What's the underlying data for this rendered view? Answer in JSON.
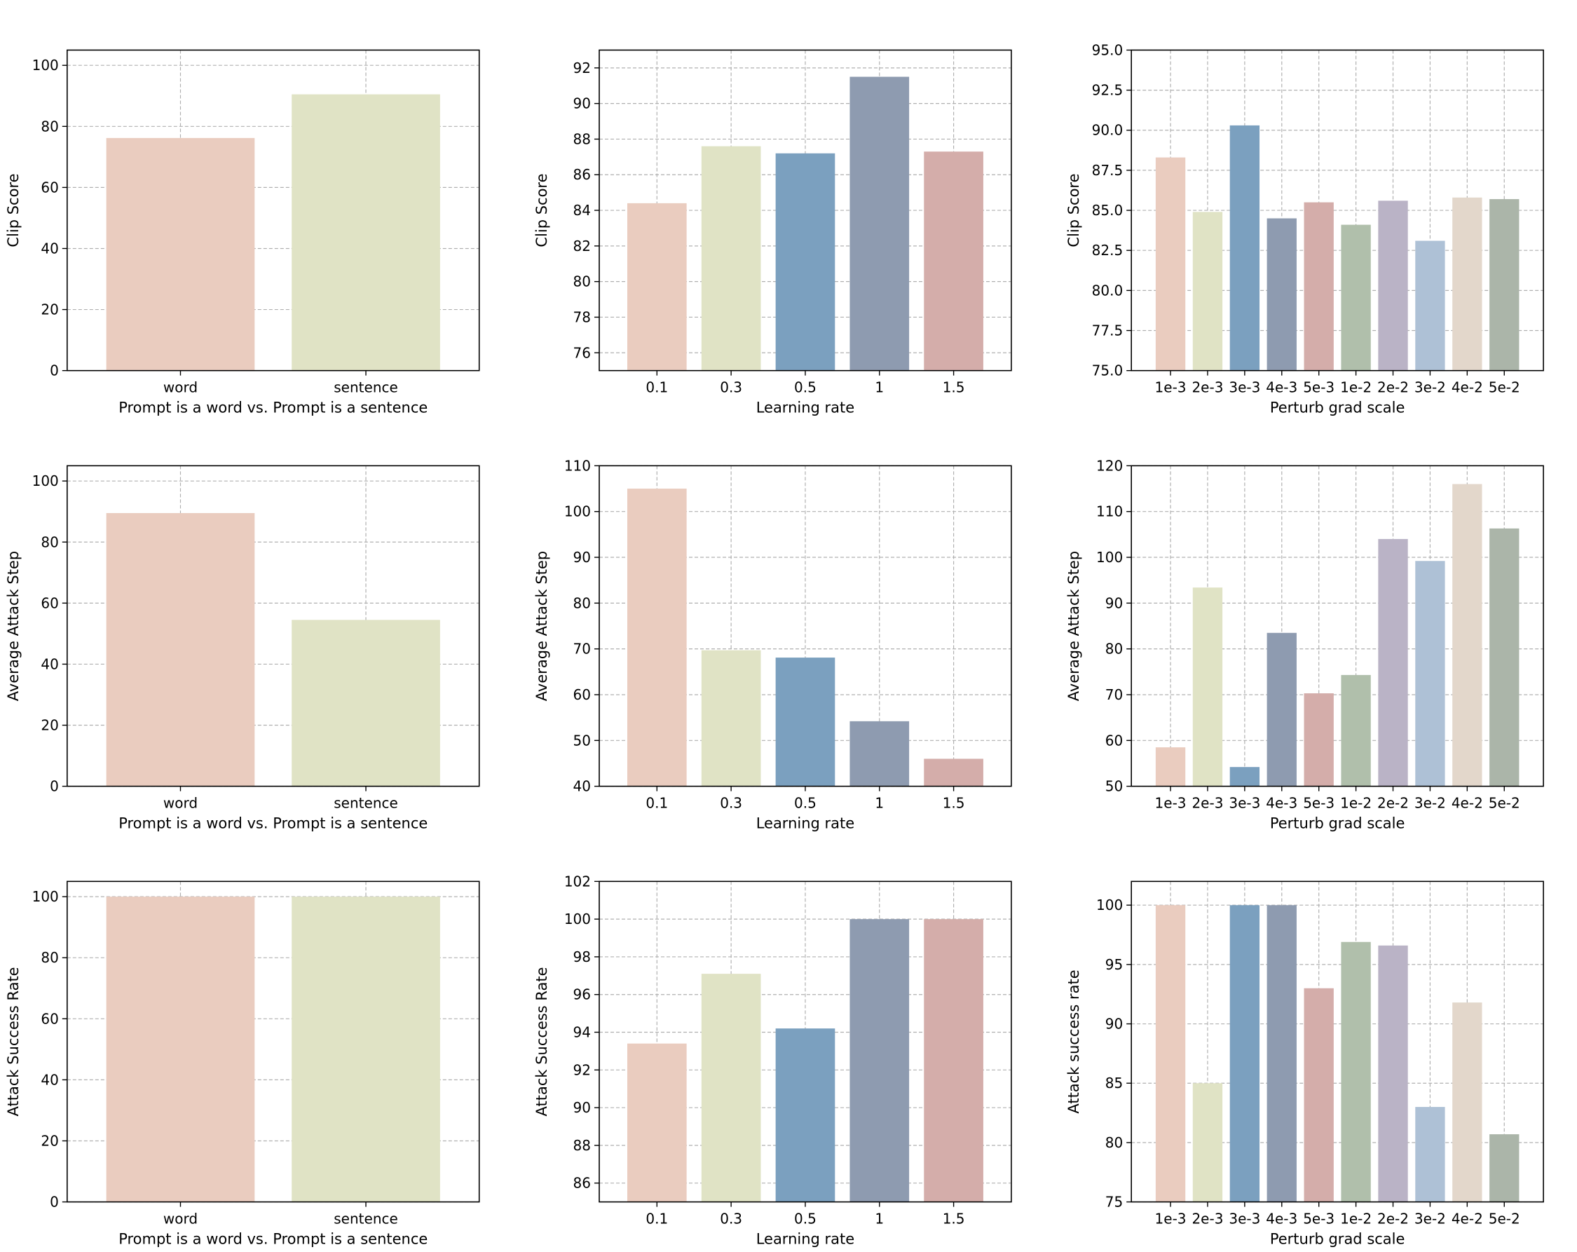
{
  "palette": [
    "#EACCBF",
    "#E0E3C5",
    "#7BA0BF",
    "#8E9BB0",
    "#D4ADAA",
    "#B0BFAB",
    "#BAB3C6",
    "#AEC1D6",
    "#E3D7CB",
    "#ABB5A9"
  ],
  "chart_data": [
    {
      "type": "bar",
      "xlabel": "Prompt is a word vs. Prompt is a sentence",
      "ylabel": "Clip Score",
      "categories": [
        "word",
        "sentence"
      ],
      "values": [
        76.2,
        90.5
      ],
      "ylim": [
        0,
        105
      ],
      "yticks": [
        0,
        20,
        40,
        60,
        80,
        100
      ],
      "ytick_labels": [
        "0",
        "20",
        "40",
        "60",
        "80",
        "100"
      ],
      "grid": true
    },
    {
      "type": "bar",
      "xlabel": "Learning rate",
      "ylabel": "Clip Score",
      "categories": [
        "0.1",
        "0.3",
        "0.5",
        "1",
        "1.5"
      ],
      "values": [
        84.4,
        87.6,
        87.2,
        91.5,
        87.3
      ],
      "ylim": [
        75,
        93
      ],
      "yticks": [
        76,
        78,
        80,
        82,
        84,
        86,
        88,
        90,
        92
      ],
      "ytick_labels": [
        "76",
        "78",
        "80",
        "82",
        "84",
        "86",
        "88",
        "90",
        "92"
      ],
      "grid": true
    },
    {
      "type": "bar",
      "xlabel": "Perturb grad scale",
      "ylabel": "Clip Score",
      "categories": [
        "1e-3",
        "2e-3",
        "3e-3",
        "4e-3",
        "5e-3",
        "1e-2",
        "2e-2",
        "3e-2",
        "4e-2",
        "5e-2"
      ],
      "values": [
        88.3,
        84.9,
        90.3,
        84.5,
        85.5,
        84.1,
        85.6,
        83.1,
        85.8,
        85.7
      ],
      "ylim": [
        75,
        95
      ],
      "yticks": [
        75,
        77.5,
        80,
        82.5,
        85,
        87.5,
        90,
        92.5,
        95
      ],
      "ytick_labels": [
        "75.0",
        "77.5",
        "80.0",
        "82.5",
        "85.0",
        "87.5",
        "90.0",
        "92.5",
        "95.0"
      ],
      "grid": true
    },
    {
      "type": "bar",
      "xlabel": "Prompt is a word vs. Prompt is a sentence",
      "ylabel": "Average Attack Step",
      "categories": [
        "word",
        "sentence"
      ],
      "values": [
        89.5,
        54.5
      ],
      "ylim": [
        0,
        105
      ],
      "yticks": [
        0,
        20,
        40,
        60,
        80,
        100
      ],
      "ytick_labels": [
        "0",
        "20",
        "40",
        "60",
        "80",
        "100"
      ],
      "grid": true
    },
    {
      "type": "bar",
      "xlabel": "Learning rate",
      "ylabel": "Average Attack Step",
      "categories": [
        "0.1",
        "0.3",
        "0.5",
        "1",
        "1.5"
      ],
      "values": [
        105,
        69.7,
        68.1,
        54.2,
        46
      ],
      "ylim": [
        40,
        110
      ],
      "yticks": [
        40,
        50,
        60,
        70,
        80,
        90,
        100,
        110
      ],
      "ytick_labels": [
        "40",
        "50",
        "60",
        "70",
        "80",
        "90",
        "100",
        "110"
      ],
      "grid": true
    },
    {
      "type": "bar",
      "xlabel": "Perturb grad scale",
      "ylabel": "Average Attack Step",
      "categories": [
        "1e-3",
        "2e-3",
        "3e-3",
        "4e-3",
        "5e-3",
        "1e-2",
        "2e-2",
        "3e-2",
        "4e-2",
        "5e-2"
      ],
      "values": [
        58.5,
        93.4,
        54.2,
        83.5,
        70.3,
        74.3,
        104,
        99.2,
        116,
        106.3
      ],
      "ylim": [
        50,
        120
      ],
      "yticks": [
        50,
        60,
        70,
        80,
        90,
        100,
        110,
        120
      ],
      "ytick_labels": [
        "50",
        "60",
        "70",
        "80",
        "90",
        "100",
        "110",
        "120"
      ],
      "grid": true
    },
    {
      "type": "bar",
      "xlabel": "Prompt is a word vs. Prompt is a sentence",
      "ylabel": "Attack Success Rate",
      "categories": [
        "word",
        "sentence"
      ],
      "values": [
        100,
        100
      ],
      "ylim": [
        0,
        105
      ],
      "yticks": [
        0,
        20,
        40,
        60,
        80,
        100
      ],
      "ytick_labels": [
        "0",
        "20",
        "40",
        "60",
        "80",
        "100"
      ],
      "grid": true
    },
    {
      "type": "bar",
      "xlabel": "Learning rate",
      "ylabel": "Attack Success Rate",
      "categories": [
        "0.1",
        "0.3",
        "0.5",
        "1",
        "1.5"
      ],
      "values": [
        93.4,
        97.1,
        94.2,
        100,
        100
      ],
      "ylim": [
        85,
        102
      ],
      "yticks": [
        86,
        88,
        90,
        92,
        94,
        96,
        98,
        100,
        102
      ],
      "ytick_labels": [
        "86",
        "88",
        "90",
        "92",
        "94",
        "96",
        "98",
        "100",
        "102"
      ],
      "grid": true
    },
    {
      "type": "bar",
      "xlabel": "Perturb grad scale",
      "ylabel": "Attack success rate",
      "categories": [
        "1e-3",
        "2e-3",
        "3e-3",
        "4e-3",
        "5e-3",
        "1e-2",
        "2e-2",
        "3e-2",
        "4e-2",
        "5e-2"
      ],
      "values": [
        100,
        85,
        100,
        100,
        93,
        96.9,
        96.6,
        83,
        91.8,
        80.7
      ],
      "ylim": [
        75,
        102
      ],
      "yticks": [
        75,
        80,
        85,
        90,
        95,
        100
      ],
      "ytick_labels": [
        "75",
        "80",
        "85",
        "90",
        "95",
        "100"
      ],
      "grid": true
    }
  ]
}
